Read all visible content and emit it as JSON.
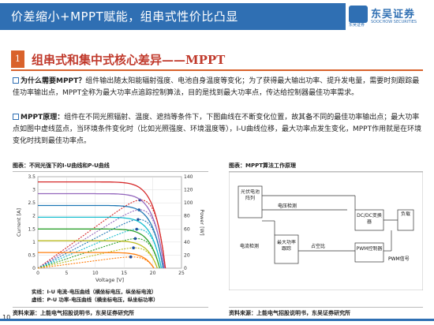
{
  "header": {
    "title": "价差缩小+MPPT赋能，组串式性价比凸显",
    "logo_main": "东吴证券",
    "logo_small": "东吴证券",
    "logo_en": "SOOCHOW SECURITIES"
  },
  "section": {
    "number": "1",
    "title": "组串式和集中式核心差异——MPPT"
  },
  "paragraphs": [
    {
      "lead": "为什么需要MPPT？",
      "text": "组件输出随太阳能辐射强度、电池自身温度等变化；为了获得最大输出功率、提升发电量，需要时刻跟踪最佳功率输出点，MPPT全称为最大功率点追踪控制算法，目的是找到最大功率点，传达给控制器最佳功率需求。"
    },
    {
      "lead": "MPPT原理：",
      "text": "组件在不同光照辐射、温度、遮挡等条件下，下图曲线在不断变化位置，故其备不同的最佳功率输出点；最大功率点如图中虚线蓝点，当环境条件变化时（比如光照强度、环境温度等），I-U曲线位移，最大功率点发生变化，MPPT作用就是在环境变化时找到最佳功率点。"
    }
  ],
  "figures": {
    "left_caption": "图表：不同光强下的I-U曲线和P-U曲线",
    "right_caption": "图表：MPPT算法工作原理",
    "left_note_1": "实线：I-U 电流-电压曲线（横坐标电压，纵坐标电流）",
    "left_note_2": "虚线：P-U 功率-电压曲线（横坐标电压，纵坐标功率）",
    "left_source": "资料来源：上能电气招股说明书，东吴证券研究所",
    "right_source": "资料来源：上能电气招股说明书，东吴证券研究所"
  },
  "chart_data": {
    "type": "line",
    "xlabel": "Voltage [V]",
    "ylabel_left": "Current [A]",
    "ylabel_right": "Power [W]",
    "x_ticks": [
      "0",
      "5",
      "10",
      "15",
      "20",
      "25"
    ],
    "y_left_ticks": [
      "0",
      "0.5",
      "1",
      "1.5",
      "2",
      "2.5",
      "3",
      "3.5"
    ],
    "y_right_ticks": [
      "0",
      "20",
      "40",
      "60",
      "80",
      "100",
      "120",
      "140"
    ],
    "xlim": [
      0,
      25
    ],
    "ylim_left": [
      0,
      3.5
    ],
    "ylim_right": [
      0,
      140
    ],
    "isc": [
      3.3,
      2.85,
      2.4,
      1.95,
      1.5,
      1.05,
      0.6
    ],
    "voc": [
      22.2,
      22.0,
      21.8,
      21.5,
      21.2,
      20.8,
      20.2
    ],
    "colors": [
      "#d62728",
      "#9467bd",
      "#1f77b4",
      "#17becf",
      "#2ca02c",
      "#bcbd22",
      "#ff7f0e"
    ]
  },
  "diagram": {
    "pv": "光伏电池阵列",
    "dcdc": "DC/DC变换器",
    "load": "负载",
    "v_detect": "电压检测",
    "i_detect": "电流检测",
    "mppt": "最大功率跟踪",
    "ad": "占空比",
    "pwm": "PWM控制器",
    "pwm_signal": "PWM信号"
  },
  "page": {
    "number": "10"
  }
}
